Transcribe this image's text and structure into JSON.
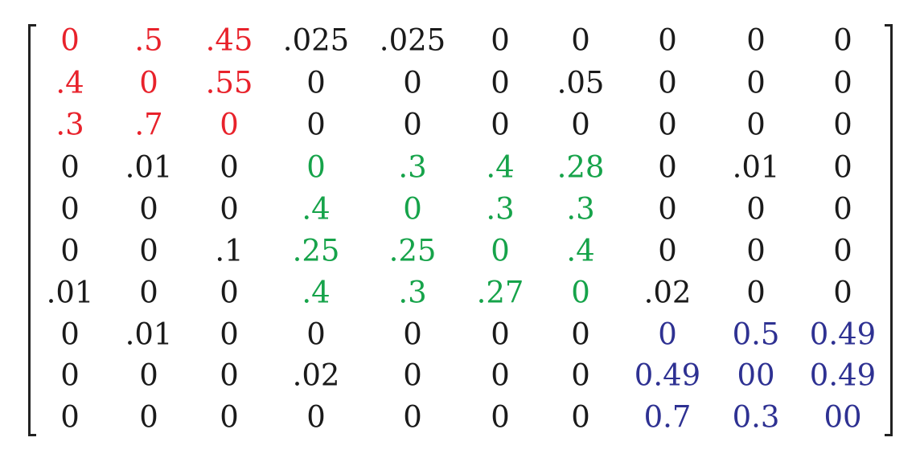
{
  "colors": {
    "default": "#1a1a1a",
    "red": "#e8222b",
    "green": "#16a34a",
    "blue": "#2e3192"
  },
  "matrix": {
    "rows": [
      [
        [
          "0",
          "red"
        ],
        [
          ".5",
          "red"
        ],
        [
          ".45",
          "red"
        ],
        [
          ".025",
          "default"
        ],
        [
          ".025",
          "default"
        ],
        [
          "0",
          "default"
        ],
        [
          "0",
          "default"
        ],
        [
          "0",
          "default"
        ],
        [
          "0",
          "default"
        ],
        [
          "0",
          "default"
        ]
      ],
      [
        [
          ".4",
          "red"
        ],
        [
          "0",
          "red"
        ],
        [
          ".55",
          "red"
        ],
        [
          "0",
          "default"
        ],
        [
          "0",
          "default"
        ],
        [
          "0",
          "default"
        ],
        [
          ".05",
          "default"
        ],
        [
          "0",
          "default"
        ],
        [
          "0",
          "default"
        ],
        [
          "0",
          "default"
        ]
      ],
      [
        [
          ".3",
          "red"
        ],
        [
          ".7",
          "red"
        ],
        [
          "0",
          "red"
        ],
        [
          "0",
          "default"
        ],
        [
          "0",
          "default"
        ],
        [
          "0",
          "default"
        ],
        [
          "0",
          "default"
        ],
        [
          "0",
          "default"
        ],
        [
          "0",
          "default"
        ],
        [
          "0",
          "default"
        ]
      ],
      [
        [
          "0",
          "default"
        ],
        [
          ".01",
          "default"
        ],
        [
          "0",
          "default"
        ],
        [
          "0",
          "green"
        ],
        [
          ".3",
          "green"
        ],
        [
          ".4",
          "green"
        ],
        [
          ".28",
          "green"
        ],
        [
          "0",
          "default"
        ],
        [
          ".01",
          "default"
        ],
        [
          "0",
          "default"
        ]
      ],
      [
        [
          "0",
          "default"
        ],
        [
          "0",
          "default"
        ],
        [
          "0",
          "default"
        ],
        [
          ".4",
          "green"
        ],
        [
          "0",
          "green"
        ],
        [
          ".3",
          "green"
        ],
        [
          ".3",
          "green"
        ],
        [
          "0",
          "default"
        ],
        [
          "0",
          "default"
        ],
        [
          "0",
          "default"
        ]
      ],
      [
        [
          "0",
          "default"
        ],
        [
          "0",
          "default"
        ],
        [
          ".1",
          "default"
        ],
        [
          ".25",
          "green"
        ],
        [
          ".25",
          "green"
        ],
        [
          "0",
          "green"
        ],
        [
          ".4",
          "green"
        ],
        [
          "0",
          "default"
        ],
        [
          "0",
          "default"
        ],
        [
          "0",
          "default"
        ]
      ],
      [
        [
          ".01",
          "default"
        ],
        [
          "0",
          "default"
        ],
        [
          "0",
          "default"
        ],
        [
          ".4",
          "green"
        ],
        [
          ".3",
          "green"
        ],
        [
          ".27",
          "green"
        ],
        [
          "0",
          "green"
        ],
        [
          ".02",
          "default"
        ],
        [
          "0",
          "default"
        ],
        [
          "0",
          "default"
        ]
      ],
      [
        [
          "0",
          "default"
        ],
        [
          ".01",
          "default"
        ],
        [
          "0",
          "default"
        ],
        [
          "0",
          "default"
        ],
        [
          "0",
          "default"
        ],
        [
          "0",
          "default"
        ],
        [
          "0",
          "default"
        ],
        [
          "0",
          "blue"
        ],
        [
          "0.5",
          "blue"
        ],
        [
          "0.49",
          "blue"
        ]
      ],
      [
        [
          "0",
          "default"
        ],
        [
          "0",
          "default"
        ],
        [
          "0",
          "default"
        ],
        [
          ".02",
          "default"
        ],
        [
          "0",
          "default"
        ],
        [
          "0",
          "default"
        ],
        [
          "0",
          "default"
        ],
        [
          "0.49",
          "blue"
        ],
        [
          "00",
          "blue"
        ],
        [
          "0.49",
          "blue"
        ]
      ],
      [
        [
          "0",
          "default"
        ],
        [
          "0",
          "default"
        ],
        [
          "0",
          "default"
        ],
        [
          "0",
          "default"
        ],
        [
          "0",
          "default"
        ],
        [
          "0",
          "default"
        ],
        [
          "0",
          "default"
        ],
        [
          "0.7",
          "blue"
        ],
        [
          "0.3",
          "blue"
        ],
        [
          "00",
          "blue"
        ]
      ]
    ]
  }
}
